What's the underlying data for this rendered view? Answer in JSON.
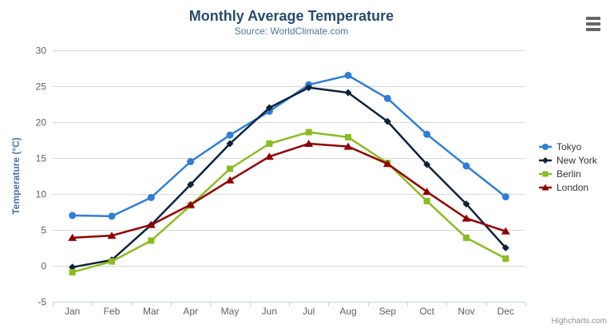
{
  "chart_data": {
    "type": "line",
    "title": "Monthly Average Temperature",
    "subtitle": "Source: WorldClimate.com",
    "categories": [
      "Jan",
      "Feb",
      "Mar",
      "Apr",
      "May",
      "Jun",
      "Jul",
      "Aug",
      "Sep",
      "Oct",
      "Nov",
      "Dec"
    ],
    "xlabel": "",
    "ylabel": "Temperature (°C)",
    "ylim": [
      -5,
      30
    ],
    "ytick_step": 5,
    "grid": true,
    "legend_position": "right",
    "series": [
      {
        "name": "Tokyo",
        "color": "#2f7ed8",
        "marker": "circle",
        "values": [
          7.0,
          6.9,
          9.5,
          14.5,
          18.2,
          21.5,
          25.2,
          26.5,
          23.3,
          18.3,
          13.9,
          9.6
        ]
      },
      {
        "name": "New York",
        "color": "#0d233a",
        "marker": "diamond",
        "values": [
          -0.2,
          0.8,
          5.7,
          11.3,
          17.0,
          22.0,
          24.8,
          24.1,
          20.1,
          14.1,
          8.6,
          2.5
        ]
      },
      {
        "name": "Berlin",
        "color": "#8bbc21",
        "marker": "square",
        "values": [
          -0.9,
          0.6,
          3.5,
          8.4,
          13.5,
          17.0,
          18.6,
          17.9,
          14.3,
          9.0,
          3.9,
          1.0
        ]
      },
      {
        "name": "London",
        "color": "#910000",
        "marker": "triangle",
        "values": [
          3.9,
          4.2,
          5.7,
          8.5,
          11.9,
          15.2,
          17.0,
          16.6,
          14.2,
          10.3,
          6.6,
          4.8
        ]
      }
    ]
  },
  "credits": "Highcharts.com",
  "menu_icon": "hamburger-icon",
  "colors": {
    "title": "#274b6d",
    "subtitle": "#4d759e",
    "axis_label": "#606063",
    "axis_title": "#4572a7",
    "gridline": "#d8d8d8",
    "axis_line": "#c0d0e0",
    "legend_text": "#333333",
    "menu_icon": "#666666",
    "credits_text": "#909090"
  }
}
